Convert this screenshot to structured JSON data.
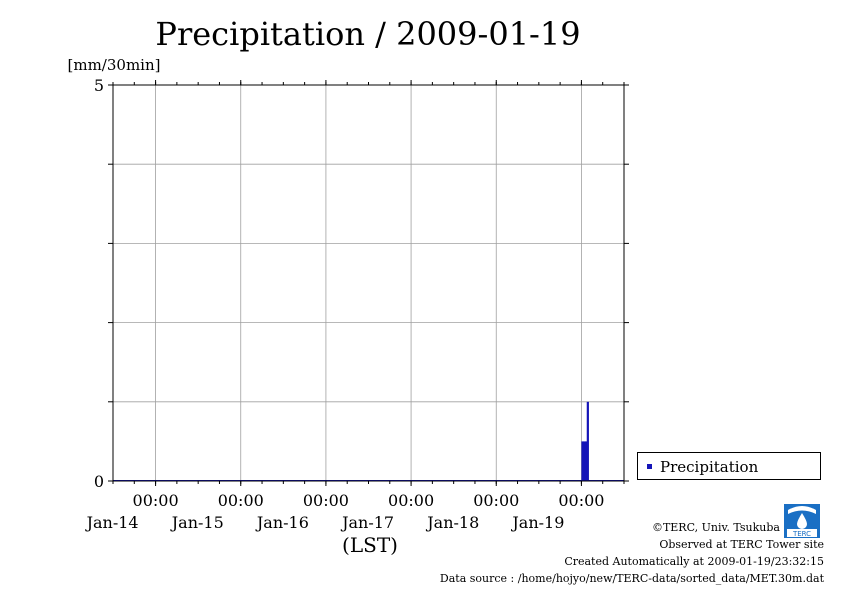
{
  "chart_data": {
    "type": "bar",
    "title": "Precipitation / 2009-01-19",
    "ylabel": "[mm/30min]",
    "xlabel": "(LST)",
    "ylim": [
      0,
      5
    ],
    "ytick_labels": [
      "0",
      "5"
    ],
    "x_range": [
      "2009-01-13 12:00",
      "2009-01-19 12:00"
    ],
    "xticks": [
      {
        "time": "2009-01-14 00:00",
        "top": "00:00",
        "bottom": "Jan-14"
      },
      {
        "time": "2009-01-15 00:00",
        "top": "00:00",
        "bottom": "Jan-15"
      },
      {
        "time": "2009-01-16 00:00",
        "top": "00:00",
        "bottom": "Jan-16"
      },
      {
        "time": "2009-01-17 00:00",
        "top": "00:00",
        "bottom": "Jan-17"
      },
      {
        "time": "2009-01-18 00:00",
        "top": "00:00",
        "bottom": "Jan-18"
      },
      {
        "time": "2009-01-19 00:00",
        "top": "00:00",
        "bottom": "Jan-19"
      }
    ],
    "grid": true,
    "legend_position": "right",
    "series": [
      {
        "name": "Precipitation",
        "color": "#1515b8",
        "points": [
          {
            "time": "2009-01-19 00:00",
            "value": 0.5
          },
          {
            "time": "2009-01-19 00:30",
            "value": 0.5
          },
          {
            "time": "2009-01-19 01:00",
            "value": 0.5
          },
          {
            "time": "2009-01-19 01:30",
            "value": 1.0
          }
        ]
      }
    ]
  },
  "footer": {
    "credit": "©TERC, Univ. Tsukuba",
    "site": "Observed at TERC Tower site",
    "created": "Created Automatically at 2009-01-19/23:32:15",
    "source": "Data source : /home/hojyo/new/TERC-data/sorted_data/MET.30m.dat"
  },
  "logo": {
    "text": "TERC",
    "color": "#1a6fc4"
  }
}
